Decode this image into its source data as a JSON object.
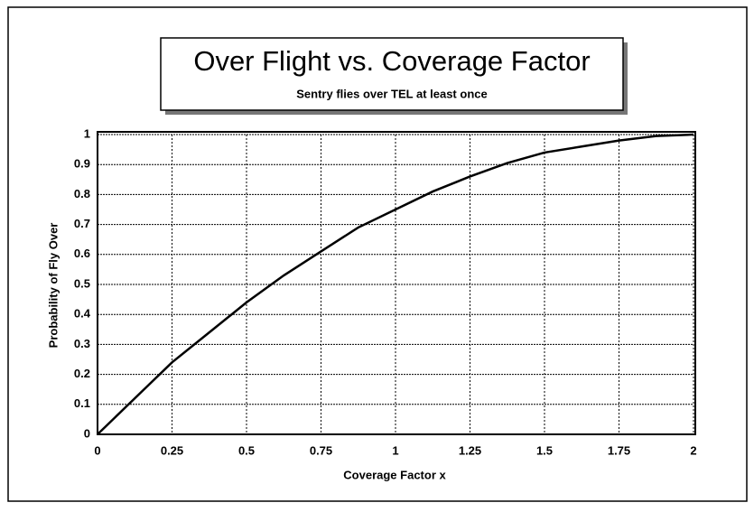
{
  "chart_data": {
    "type": "line",
    "title": "Over Flight vs. Coverage Factor",
    "subtitle": "Sentry flies over TEL at least once",
    "x_label": "Coverage Factor x",
    "y_label": "Probability of Fly Over",
    "x": [
      0,
      0.125,
      0.25,
      0.375,
      0.5,
      0.625,
      0.75,
      0.875,
      1,
      1.125,
      1.25,
      1.375,
      1.5,
      1.625,
      1.75,
      1.875,
      2
    ],
    "series": [
      {
        "name": "Probability",
        "color": "#000000",
        "values": [
          0,
          0.12,
          0.24,
          0.34,
          0.44,
          0.53,
          0.61,
          0.69,
          0.75,
          0.81,
          0.86,
          0.905,
          0.94,
          0.96,
          0.98,
          0.995,
          1.0
        ]
      }
    ],
    "xlim": [
      0,
      2
    ],
    "xticks": [
      0,
      0.25,
      0.5,
      0.75,
      1,
      1.25,
      1.5,
      1.75,
      2
    ],
    "ylim": [
      0,
      1
    ],
    "yticks": [
      0,
      0.1,
      0.2,
      0.3,
      0.4,
      0.5,
      0.6,
      0.7,
      0.8,
      0.9,
      1
    ],
    "grid": true
  }
}
